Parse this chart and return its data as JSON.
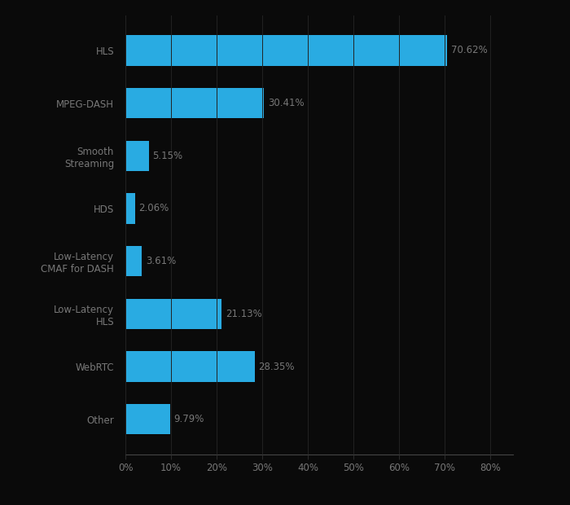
{
  "categories": [
    "HLS",
    "MPEG-DASH",
    "Smooth\nStreaming",
    "HDS",
    "Low-Latency\nCMAF for DASH",
    "Low-Latency\nHLS",
    "WebRTC",
    "Other"
  ],
  "values": [
    70.62,
    30.41,
    5.15,
    2.06,
    3.61,
    21.13,
    28.35,
    9.79
  ],
  "labels": [
    "70.62%",
    "30.41%",
    "5.15%",
    "2.06%",
    "3.61%",
    "21.13%",
    "28.35%",
    "9.79%"
  ],
  "bar_color": "#29ABE2",
  "background_color": "#0a0a0a",
  "text_color": "#777777",
  "label_color": "#777777",
  "grid_color": "#2a2a2a",
  "xlim": [
    0,
    85
  ],
  "xticks": [
    0,
    10,
    20,
    30,
    40,
    50,
    60,
    70,
    80
  ],
  "xtick_labels": [
    "0%",
    "10%",
    "20%",
    "30%",
    "40%",
    "50%",
    "60%",
    "70%",
    "80%"
  ],
  "bar_height": 0.58,
  "figsize": [
    7.0,
    6.2
  ],
  "dpi": 100
}
